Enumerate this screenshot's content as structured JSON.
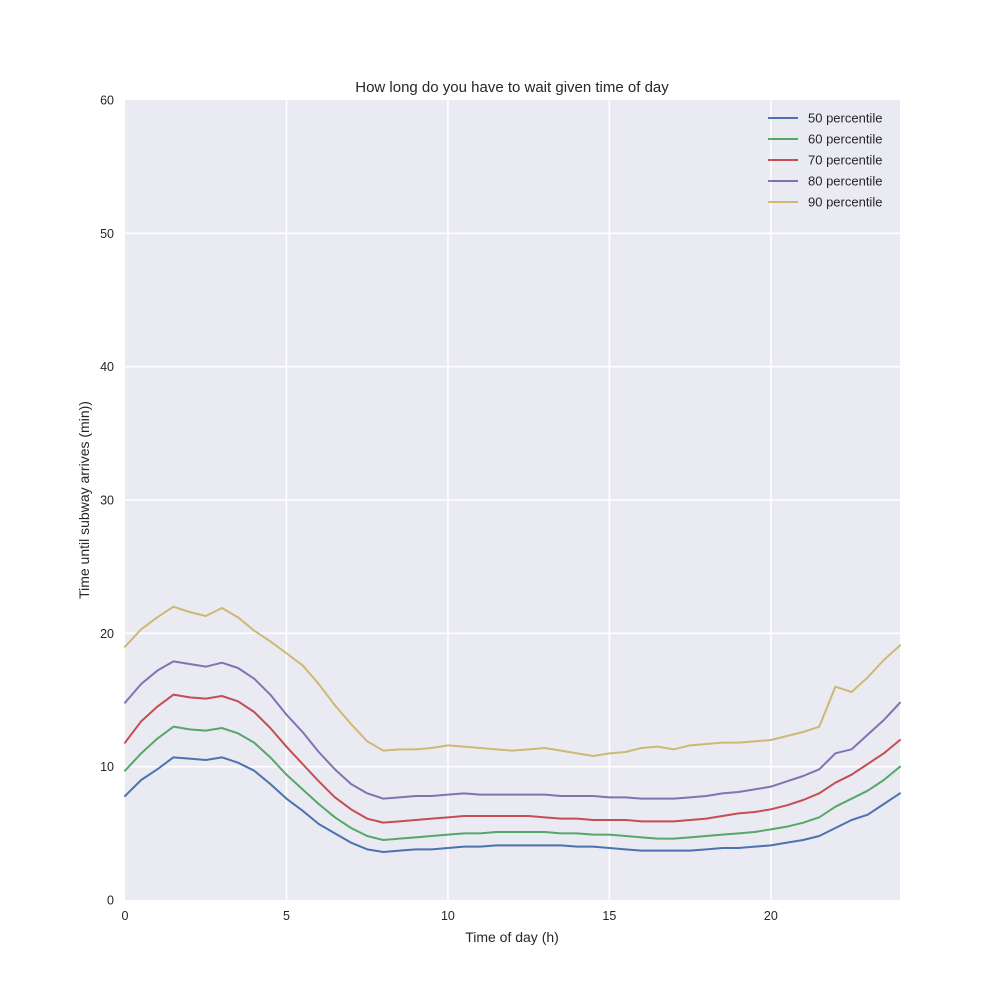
{
  "chart_data": {
    "type": "line",
    "title": "How long do you have to wait given time of day",
    "xlabel": "Time of day (h)",
    "ylabel": "Time until subway arrives (min))",
    "xlim": [
      0,
      24
    ],
    "ylim": [
      0,
      60
    ],
    "xticks": [
      "0",
      "5",
      "10",
      "15",
      "20"
    ],
    "yticks": [
      "0",
      "10",
      "20",
      "30",
      "40",
      "50",
      "60"
    ],
    "grid": true,
    "legend": "top-right",
    "x": [
      0,
      0.5,
      1,
      1.5,
      2,
      2.5,
      3,
      3.5,
      4,
      4.5,
      5,
      5.5,
      6,
      6.5,
      7,
      7.5,
      8,
      8.5,
      9,
      9.5,
      10,
      10.5,
      11,
      11.5,
      12,
      12.5,
      13,
      13.5,
      14,
      14.5,
      15,
      15.5,
      16,
      16.5,
      17,
      17.5,
      18,
      18.5,
      19,
      19.5,
      20,
      20.5,
      21,
      21.5,
      22,
      22.5,
      23,
      23.5,
      24
    ],
    "series": [
      {
        "name": "50 percentile",
        "color": "#4c72b0",
        "values": [
          7.8,
          9.0,
          9.8,
          10.7,
          10.6,
          10.5,
          10.7,
          10.3,
          9.7,
          8.7,
          7.6,
          6.7,
          5.7,
          5.0,
          4.3,
          3.8,
          3.6,
          3.7,
          3.8,
          3.8,
          3.9,
          4.0,
          4.0,
          4.1,
          4.1,
          4.1,
          4.1,
          4.1,
          4.0,
          4.0,
          3.9,
          3.8,
          3.7,
          3.7,
          3.7,
          3.7,
          3.8,
          3.9,
          3.9,
          4.0,
          4.1,
          4.3,
          4.5,
          4.8,
          5.4,
          6.0,
          6.4,
          7.2,
          8.0
        ]
      },
      {
        "name": "60 percentile",
        "color": "#55a868",
        "values": [
          9.7,
          11.0,
          12.1,
          13.0,
          12.8,
          12.7,
          12.9,
          12.5,
          11.8,
          10.7,
          9.4,
          8.3,
          7.2,
          6.2,
          5.4,
          4.8,
          4.5,
          4.6,
          4.7,
          4.8,
          4.9,
          5.0,
          5.0,
          5.1,
          5.1,
          5.1,
          5.1,
          5.0,
          5.0,
          4.9,
          4.9,
          4.8,
          4.7,
          4.6,
          4.6,
          4.7,
          4.8,
          4.9,
          5.0,
          5.1,
          5.3,
          5.5,
          5.8,
          6.2,
          7.0,
          7.6,
          8.2,
          9.0,
          10.0
        ]
      },
      {
        "name": "70 percentile",
        "color": "#c44e52",
        "values": [
          11.8,
          13.4,
          14.5,
          15.4,
          15.2,
          15.1,
          15.3,
          14.9,
          14.1,
          12.9,
          11.5,
          10.2,
          8.9,
          7.7,
          6.8,
          6.1,
          5.8,
          5.9,
          6.0,
          6.1,
          6.2,
          6.3,
          6.3,
          6.3,
          6.3,
          6.3,
          6.2,
          6.1,
          6.1,
          6.0,
          6.0,
          6.0,
          5.9,
          5.9,
          5.9,
          6.0,
          6.1,
          6.3,
          6.5,
          6.6,
          6.8,
          7.1,
          7.5,
          8.0,
          8.8,
          9.4,
          10.2,
          11.0,
          12.0
        ]
      },
      {
        "name": "80 percentile",
        "color": "#8172b2",
        "values": [
          14.8,
          16.2,
          17.2,
          17.9,
          17.7,
          17.5,
          17.8,
          17.4,
          16.6,
          15.4,
          13.9,
          12.6,
          11.1,
          9.8,
          8.7,
          8.0,
          7.6,
          7.7,
          7.8,
          7.8,
          7.9,
          8.0,
          7.9,
          7.9,
          7.9,
          7.9,
          7.9,
          7.8,
          7.8,
          7.8,
          7.7,
          7.7,
          7.6,
          7.6,
          7.6,
          7.7,
          7.8,
          8.0,
          8.1,
          8.3,
          8.5,
          8.9,
          9.3,
          9.8,
          11.0,
          11.3,
          12.4,
          13.5,
          14.8
        ]
      },
      {
        "name": "90 percentile",
        "color": "#ccb974",
        "values": [
          19.0,
          20.3,
          21.2,
          22.0,
          21.6,
          21.3,
          21.9,
          21.2,
          20.2,
          19.4,
          18.5,
          17.6,
          16.2,
          14.6,
          13.2,
          11.9,
          11.2,
          11.3,
          11.3,
          11.4,
          11.6,
          11.5,
          11.4,
          11.3,
          11.2,
          11.3,
          11.4,
          11.2,
          11.0,
          10.8,
          11.0,
          11.1,
          11.4,
          11.5,
          11.3,
          11.6,
          11.7,
          11.8,
          11.8,
          11.9,
          12.0,
          12.3,
          12.6,
          13.0,
          16.0,
          15.6,
          16.7,
          18.0,
          19.1
        ]
      }
    ]
  }
}
